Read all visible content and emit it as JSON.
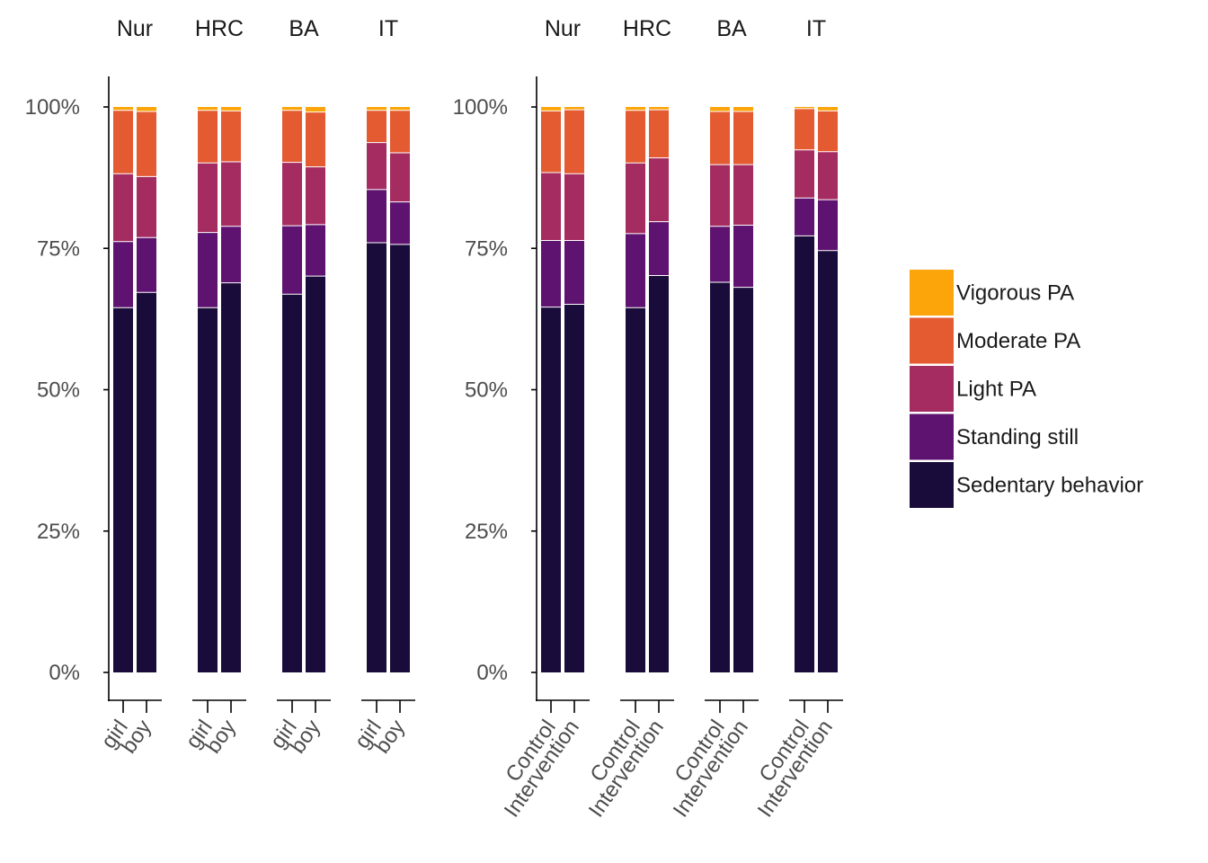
{
  "chart_data": [
    {
      "type": "bar",
      "stacked": true,
      "panel": "by-sex",
      "ylim": [
        0,
        1
      ],
      "ytick_labels": [
        "0%",
        "25%",
        "50%",
        "75%",
        "100%"
      ],
      "facets": [
        "Nur",
        "HRC",
        "BA",
        "IT"
      ],
      "categories": [
        "girl",
        "boy"
      ],
      "series_names": [
        "Sedentary behavior",
        "Standing still",
        "Light PA",
        "Moderate PA",
        "Vigorous PA"
      ],
      "bars": {
        "Nur": {
          "girl": [
            0.645,
            0.117,
            0.12,
            0.112,
            0.006
          ],
          "boy": [
            0.672,
            0.097,
            0.108,
            0.115,
            0.008
          ]
        },
        "HRC": {
          "girl": [
            0.645,
            0.133,
            0.123,
            0.093,
            0.006
          ],
          "boy": [
            0.689,
            0.1,
            0.114,
            0.09,
            0.007
          ]
        },
        "BA": {
          "girl": [
            0.669,
            0.121,
            0.112,
            0.092,
            0.006
          ],
          "boy": [
            0.701,
            0.091,
            0.102,
            0.097,
            0.009
          ]
        },
        "IT": {
          "girl": [
            0.76,
            0.094,
            0.083,
            0.057,
            0.006
          ],
          "boy": [
            0.757,
            0.075,
            0.087,
            0.075,
            0.006
          ]
        }
      }
    },
    {
      "type": "bar",
      "stacked": true,
      "panel": "by-group",
      "ylim": [
        0,
        1
      ],
      "ytick_labels": [
        "0%",
        "25%",
        "50%",
        "75%",
        "100%"
      ],
      "facets": [
        "Nur",
        "HRC",
        "BA",
        "IT"
      ],
      "categories": [
        "Control",
        "Intervention"
      ],
      "series_names": [
        "Sedentary behavior",
        "Standing still",
        "Light PA",
        "Moderate PA",
        "Vigorous PA"
      ],
      "bars": {
        "Nur": {
          "Control": [
            0.646,
            0.118,
            0.12,
            0.109,
            0.007
          ],
          "Intervention": [
            0.651,
            0.113,
            0.118,
            0.113,
            0.005
          ]
        },
        "HRC": {
          "Control": [
            0.645,
            0.131,
            0.125,
            0.093,
            0.006
          ],
          "Intervention": [
            0.702,
            0.095,
            0.113,
            0.085,
            0.005
          ]
        },
        "BA": {
          "Control": [
            0.69,
            0.099,
            0.109,
            0.094,
            0.008
          ],
          "Intervention": [
            0.681,
            0.11,
            0.107,
            0.094,
            0.008
          ]
        },
        "IT": {
          "Control": [
            0.772,
            0.067,
            0.085,
            0.073,
            0.003
          ],
          "Intervention": [
            0.746,
            0.09,
            0.085,
            0.072,
            0.007
          ]
        }
      }
    }
  ],
  "legend": {
    "placement": "right",
    "items": [
      {
        "label": "Vigorous PA",
        "color": "#FCA50A"
      },
      {
        "label": "Moderate PA",
        "color": "#E45A31"
      },
      {
        "label": "Light PA",
        "color": "#A52C60"
      },
      {
        "label": "Standing still",
        "color": "#5F1370"
      },
      {
        "label": "Sedentary behavior",
        "color": "#1A0C3A"
      }
    ]
  },
  "colors": {
    "series": [
      "#1A0C3A",
      "#5F1370",
      "#A52C60",
      "#E45A31",
      "#FCA50A"
    ],
    "axis": "#000000",
    "tick_label": "#4D4D4D",
    "strip_label": "#1A1A1A"
  }
}
